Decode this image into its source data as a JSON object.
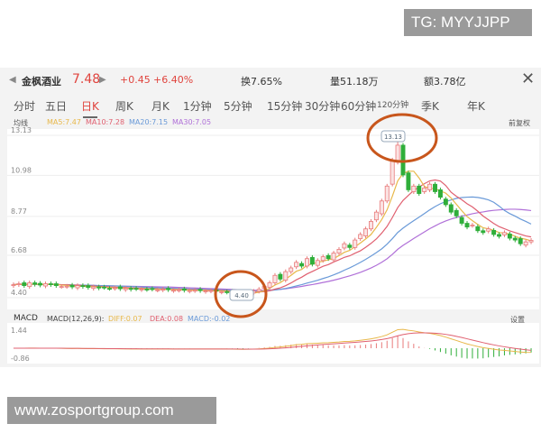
{
  "watermarks": {
    "top": "TG: MYYJJPP",
    "bottom": "www.zosportgroup.com"
  },
  "header": {
    "prev_icon": "triangle-left",
    "name": "金枫酒业",
    "price": "7.48",
    "next_icon": "triangle-right",
    "change": "+0.45",
    "change_pct": "+6.40%",
    "turnover": "换7.65%",
    "volume": "量51.18万",
    "amount": "额3.78亿",
    "close_icon": "x"
  },
  "tabs": [
    {
      "label": "分时"
    },
    {
      "label": "五日"
    },
    {
      "label": "日K",
      "active": true
    },
    {
      "label": "周K"
    },
    {
      "label": "月K"
    },
    {
      "label": "1分钟"
    },
    {
      "label": "5分钟"
    },
    {
      "label": "15分钟"
    },
    {
      "label": "30分钟"
    },
    {
      "label": "60分钟"
    },
    {
      "label": "120分钟"
    },
    {
      "label": "季K"
    },
    {
      "label": "年K"
    }
  ],
  "ma_legend": {
    "title": "均线",
    "ma5": "MA5:7.47",
    "ma10": "MA10:7.28",
    "ma20": "MA20:7.15",
    "ma30": "MA30:7.05",
    "adjust": "前复权"
  },
  "colors": {
    "up": "#e87a7a",
    "down": "#2fae3a",
    "ma5": "#e8b84a",
    "ma10": "#e06070",
    "ma20": "#6a9ad8",
    "ma30": "#b070d8",
    "circle": "#c8561c"
  },
  "chart_data": {
    "type": "candlestick",
    "y_ticks": [
      "13.13",
      "10.98",
      "8.77",
      "6.68",
      "4.40"
    ],
    "ylim": [
      4.4,
      13.13
    ],
    "high_label": "13.13",
    "low_label": "4.40",
    "closes": [
      5.1,
      5.15,
      5.05,
      5.2,
      5.12,
      5.08,
      5.15,
      5.1,
      5.05,
      5.0,
      5.02,
      4.98,
      5.05,
      5.0,
      4.95,
      4.98,
      4.92,
      4.95,
      4.9,
      4.93,
      4.88,
      4.9,
      4.85,
      4.88,
      4.86,
      4.84,
      4.86,
      4.82,
      4.85,
      4.83,
      4.8,
      4.82,
      4.8,
      4.78,
      4.8,
      4.78,
      4.76,
      4.78,
      4.75,
      4.72,
      4.7,
      4.65,
      4.55,
      4.6,
      4.7,
      4.75,
      4.85,
      5.0,
      5.2,
      5.6,
      5.4,
      5.8,
      6.0,
      6.3,
      6.1,
      6.5,
      6.2,
      6.4,
      6.6,
      6.5,
      6.8,
      7.0,
      7.3,
      7.1,
      7.5,
      7.8,
      8.1,
      8.5,
      9.0,
      9.6,
      10.4,
      11.8,
      12.6,
      11.0,
      10.2,
      10.4,
      10.0,
      10.3,
      10.5,
      10.1,
      9.8,
      9.4,
      9.0,
      8.8,
      8.4,
      8.2,
      8.3,
      8.0,
      7.9,
      8.1,
      7.8,
      7.7,
      7.9,
      7.6,
      7.5,
      7.3,
      7.4,
      7.48
    ]
  },
  "macd": {
    "label": "MACD",
    "params": "MACD(12,26,9):",
    "diff": "DIFF:0.07",
    "dea": "DEA:0.08",
    "macd": "MACD:-0.02",
    "settings": "设置",
    "ymax": "1.44",
    "ymin": "-0.86"
  }
}
